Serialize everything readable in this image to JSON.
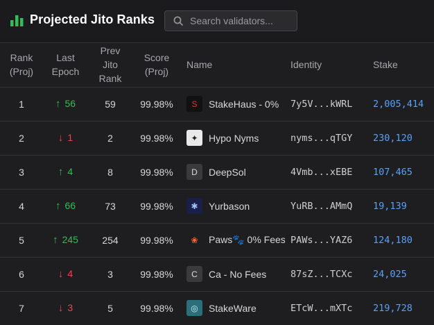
{
  "header": {
    "title": "Projected Jito Ranks",
    "logo_icon": "bar-chart-icon",
    "accent": "#2fbf55"
  },
  "search": {
    "placeholder": "Search validators...",
    "value": ""
  },
  "columns": {
    "rank": [
      "Rank",
      "(Proj)"
    ],
    "last_epoch": [
      "Last",
      "Epoch"
    ],
    "prev": [
      "Prev",
      "Jito",
      "Rank"
    ],
    "score": [
      "Score",
      "(Proj)"
    ],
    "name": "Name",
    "identity": "Identity",
    "stake": "Stake"
  },
  "rows": [
    {
      "rank": "1",
      "dir": "up",
      "change": "56",
      "prev": "59",
      "score": "99.98%",
      "name": "StakeHaus - 0%",
      "avatar": "S",
      "avatar_bg": "#111111",
      "avatar_fg": "#e0332e",
      "identity": "7y5V...kWRL",
      "stake": "2,005,414"
    },
    {
      "rank": "2",
      "dir": "down",
      "change": "1",
      "prev": "2",
      "score": "99.98%",
      "name": "Hypo Nyms",
      "avatar": "✦",
      "avatar_bg": "#e9e9e9",
      "avatar_fg": "#222222",
      "identity": "nyms...qTGY",
      "stake": "230,120"
    },
    {
      "rank": "3",
      "dir": "up",
      "change": "4",
      "prev": "8",
      "score": "99.98%",
      "name": "DeepSol",
      "avatar": "D",
      "avatar_bg": "#3a3a3d",
      "avatar_fg": "#dddddd",
      "identity": "4Vmb...xEBE",
      "stake": "107,465"
    },
    {
      "rank": "4",
      "dir": "up",
      "change": "66",
      "prev": "73",
      "score": "99.98%",
      "name": "Yurbason",
      "avatar": "✱",
      "avatar_bg": "#1a1f4a",
      "avatar_fg": "#9fc0ff",
      "identity": "YuRB...AMmQ",
      "stake": "19,139"
    },
    {
      "rank": "5",
      "dir": "up",
      "change": "245",
      "prev": "254",
      "score": "99.98%",
      "name": "Paws🐾 0% Fees",
      "avatar": "❀",
      "avatar_bg": "#1e1e20",
      "avatar_fg": "#ff6a3d",
      "identity": "PAWs...YAZ6",
      "stake": "124,180"
    },
    {
      "rank": "6",
      "dir": "down",
      "change": "4",
      "prev": "3",
      "score": "99.98%",
      "name": "Ca - No Fees",
      "avatar": "C",
      "avatar_bg": "#3a3a3d",
      "avatar_fg": "#dddddd",
      "identity": "87sZ...TCXc",
      "stake": "24,025"
    },
    {
      "rank": "7",
      "dir": "down",
      "change": "3",
      "prev": "5",
      "score": "99.98%",
      "name": "StakeWare",
      "avatar": "◎",
      "avatar_bg": "#2a6f7a",
      "avatar_fg": "#cfeef2",
      "identity": "ETcW...mXTc",
      "stake": "219,728"
    }
  ],
  "colors": {
    "up": "#2fbf55",
    "down": "#e5484d",
    "stake": "#5aa1f5"
  }
}
